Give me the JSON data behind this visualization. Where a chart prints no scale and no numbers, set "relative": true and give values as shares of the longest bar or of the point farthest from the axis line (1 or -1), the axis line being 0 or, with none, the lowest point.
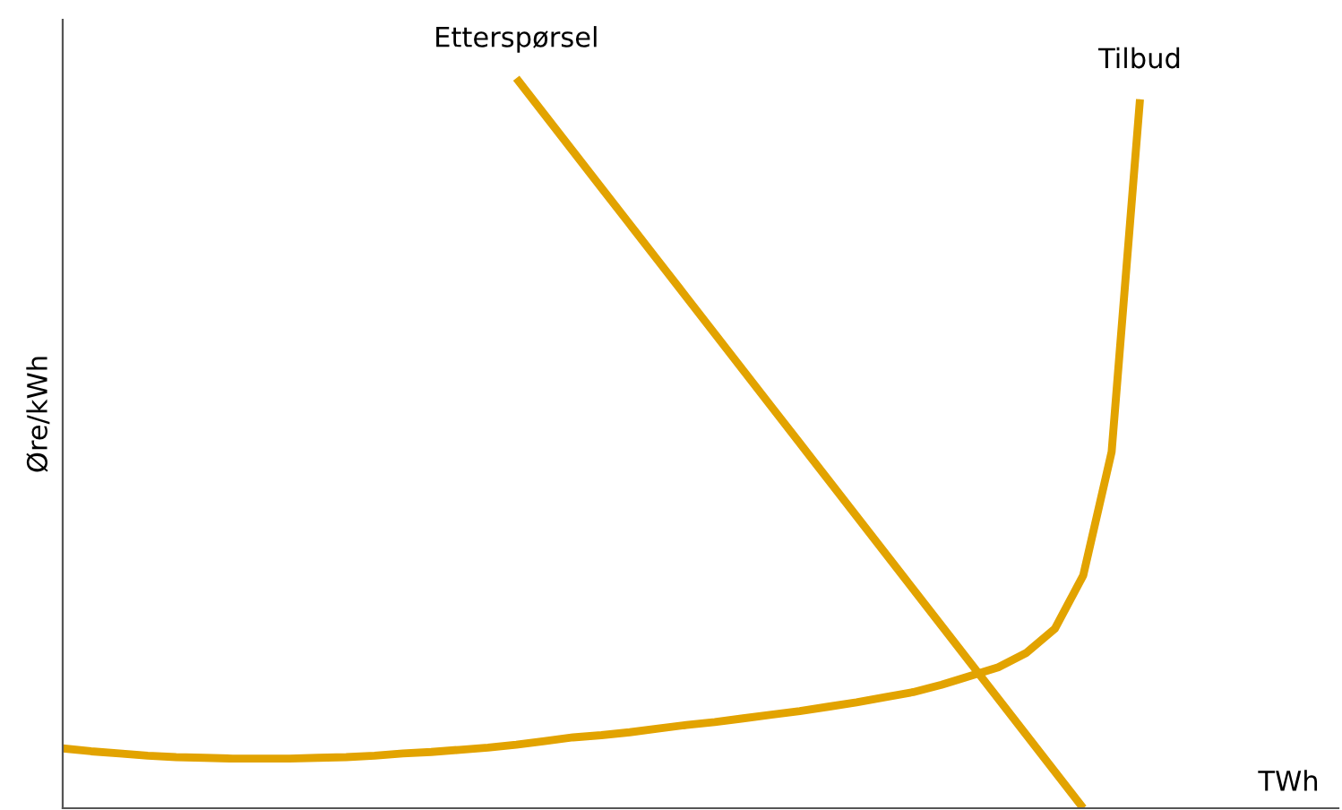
{
  "chart_data": {
    "type": "line",
    "relative": true,
    "ylabel": "Øre/kWh",
    "xlabel": "TWh",
    "categories": [
      null,
      null,
      null,
      null,
      null,
      null,
      null,
      null,
      null,
      null,
      null,
      null,
      null,
      null,
      null,
      null,
      null,
      null,
      null,
      null,
      null,
      null,
      null,
      null,
      null,
      null,
      null,
      null,
      null,
      null,
      null,
      null,
      null,
      null,
      null,
      null,
      null,
      null,
      null,
      null,
      null,
      null,
      null,
      null,
      null,
      null
    ],
    "series": [
      {
        "name": "Etterspørsel",
        "color": "#e2a300",
        "values": [
          null,
          null,
          null,
          null,
          null,
          null,
          null,
          null,
          null,
          null,
          null,
          null,
          null,
          null,
          null,
          null,
          1.0,
          0.95,
          0.9,
          0.85,
          0.8,
          0.75,
          0.7,
          0.65,
          0.6,
          0.55,
          0.5,
          0.45,
          0.4,
          0.35,
          0.3,
          0.25,
          0.2,
          0.15,
          0.1,
          0.05,
          0.0,
          null,
          null,
          null,
          null,
          null,
          null,
          null,
          null,
          null
        ]
      },
      {
        "name": "Tilbud",
        "color": "#e2a300",
        "values": [
          0.082,
          0.078,
          0.075,
          0.072,
          0.07,
          0.069,
          0.068,
          0.068,
          0.068,
          0.069,
          0.07,
          0.072,
          0.075,
          0.077,
          0.08,
          0.083,
          0.087,
          0.092,
          0.097,
          0.1,
          0.104,
          0.109,
          0.114,
          0.118,
          0.123,
          0.128,
          0.133,
          0.139,
          0.145,
          0.152,
          0.159,
          0.169,
          0.181,
          0.193,
          0.213,
          0.246,
          0.319,
          0.488,
          0.971,
          null,
          null,
          null,
          null,
          null,
          null,
          null
        ]
      }
    ],
    "legend": false
  }
}
